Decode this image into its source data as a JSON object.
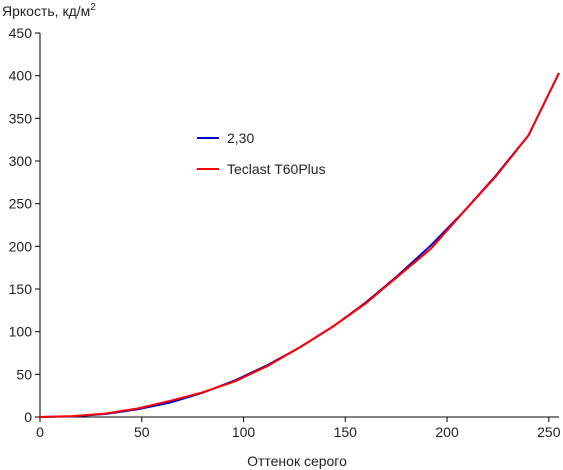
{
  "chart_data": {
    "type": "line",
    "ylabel": "Яркость, кд/м",
    "ylabel_sup": "2",
    "xlabel": "Оттенок серого",
    "xlim": [
      0,
      255
    ],
    "ylim": [
      0,
      450
    ],
    "xticks": [
      0,
      50,
      100,
      150,
      200,
      250
    ],
    "yticks": [
      0,
      50,
      100,
      150,
      200,
      250,
      300,
      350,
      400,
      450
    ],
    "grid": false,
    "legend": "center-left",
    "series": [
      {
        "name": "2,30",
        "color": "#0000cc",
        "x": [
          0,
          16,
          32,
          48,
          64,
          80,
          96,
          112,
          128,
          144,
          160,
          176,
          192,
          208,
          224,
          240,
          255
        ],
        "y": [
          0,
          0.7,
          3.5,
          9,
          17,
          28.5,
          43,
          61,
          82,
          106,
          134,
          166,
          201,
          240,
          283,
          330,
          403
        ]
      },
      {
        "name": "Teclast T60Plus",
        "color": "#ff0000",
        "x": [
          0,
          16,
          32,
          48,
          64,
          80,
          96,
          112,
          128,
          144,
          160,
          176,
          192,
          208,
          224,
          240,
          255
        ],
        "y": [
          0,
          1,
          4,
          10,
          19,
          29,
          42,
          60,
          82,
          106,
          133,
          165,
          197,
          240,
          282,
          330,
          403
        ]
      }
    ]
  }
}
